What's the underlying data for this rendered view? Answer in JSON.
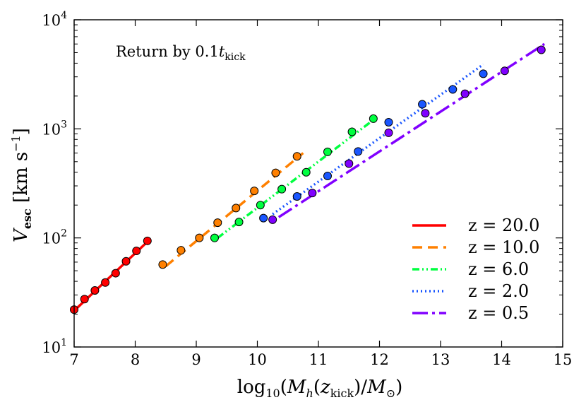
{
  "chart_data": {
    "type": "scatter",
    "title": "",
    "annotation": "Return by 0.1t_kick",
    "xlabel": "log10(Mh(zkick)/M⊙)",
    "ylabel": "Vesc [km s⁻¹]",
    "xlim": [
      7,
      15
    ],
    "ylim": [
      10,
      10000
    ],
    "yscale": "log",
    "x_ticks": [
      "7",
      "8",
      "9",
      "10",
      "11",
      "12",
      "13",
      "14",
      "15"
    ],
    "y_ticks": [
      {
        "value": 10,
        "label": "10",
        "exp": "1"
      },
      {
        "value": 100,
        "label": "10",
        "exp": "2"
      },
      {
        "value": 1000,
        "label": "10",
        "exp": "3"
      },
      {
        "value": 10000,
        "label": "10",
        "exp": "4"
      }
    ],
    "legend_location": "lower-right",
    "series": [
      {
        "name": "z = 20.0",
        "color": "#ff0000",
        "linestyle": "solid",
        "line": {
          "x": [
            7.0,
            8.25
          ],
          "y": [
            21.5,
            98
          ]
        },
        "points": {
          "x": [
            7.0,
            7.17,
            7.34,
            7.51,
            7.68,
            7.85,
            8.02,
            8.2
          ],
          "y": [
            22,
            27.5,
            33,
            39,
            47.5,
            61,
            76,
            94
          ]
        }
      },
      {
        "name": "z = 10.0",
        "color": "#ff8000",
        "linestyle": "dashed",
        "line": {
          "x": [
            8.5,
            10.75
          ],
          "y": [
            55,
            600
          ]
        },
        "points": {
          "x": [
            8.45,
            8.75,
            9.05,
            9.35,
            9.65,
            9.95,
            10.3,
            10.65
          ],
          "y": [
            57,
            77,
            100,
            138,
            188,
            270,
            395,
            560
          ]
        }
      },
      {
        "name": "z = 6.0",
        "color": "#00ff40",
        "linestyle": "dashdotdot",
        "line": {
          "x": [
            9.35,
            11.85
          ],
          "y": [
            100,
            1150
          ]
        },
        "points": {
          "x": [
            9.3,
            9.7,
            10.05,
            10.4,
            10.8,
            11.15,
            11.55,
            11.9
          ],
          "y": [
            100,
            140,
            200,
            280,
            400,
            615,
            940,
            1240
          ]
        }
      },
      {
        "name": "z = 2.0",
        "color": "#1a56ff",
        "linestyle": "dotted",
        "line": {
          "x": [
            10.25,
            13.7
          ],
          "y": [
            165,
            3900
          ]
        },
        "points": {
          "x": [
            10.1,
            10.65,
            11.15,
            11.65,
            12.15,
            12.7,
            13.2,
            13.7
          ],
          "y": [
            152,
            240,
            370,
            620,
            1150,
            1680,
            2300,
            3200
          ]
        }
      },
      {
        "name": "z = 0.5",
        "color": "#8000ff",
        "linestyle": "longdashdot",
        "line": {
          "x": [
            10.35,
            14.7
          ],
          "y": [
            155,
            6000
          ]
        },
        "points": {
          "x": [
            10.25,
            10.9,
            11.5,
            12.15,
            12.75,
            13.4,
            14.05,
            14.65
          ],
          "y": [
            147,
            258,
            480,
            920,
            1390,
            2100,
            3400,
            5300
          ]
        }
      }
    ]
  }
}
